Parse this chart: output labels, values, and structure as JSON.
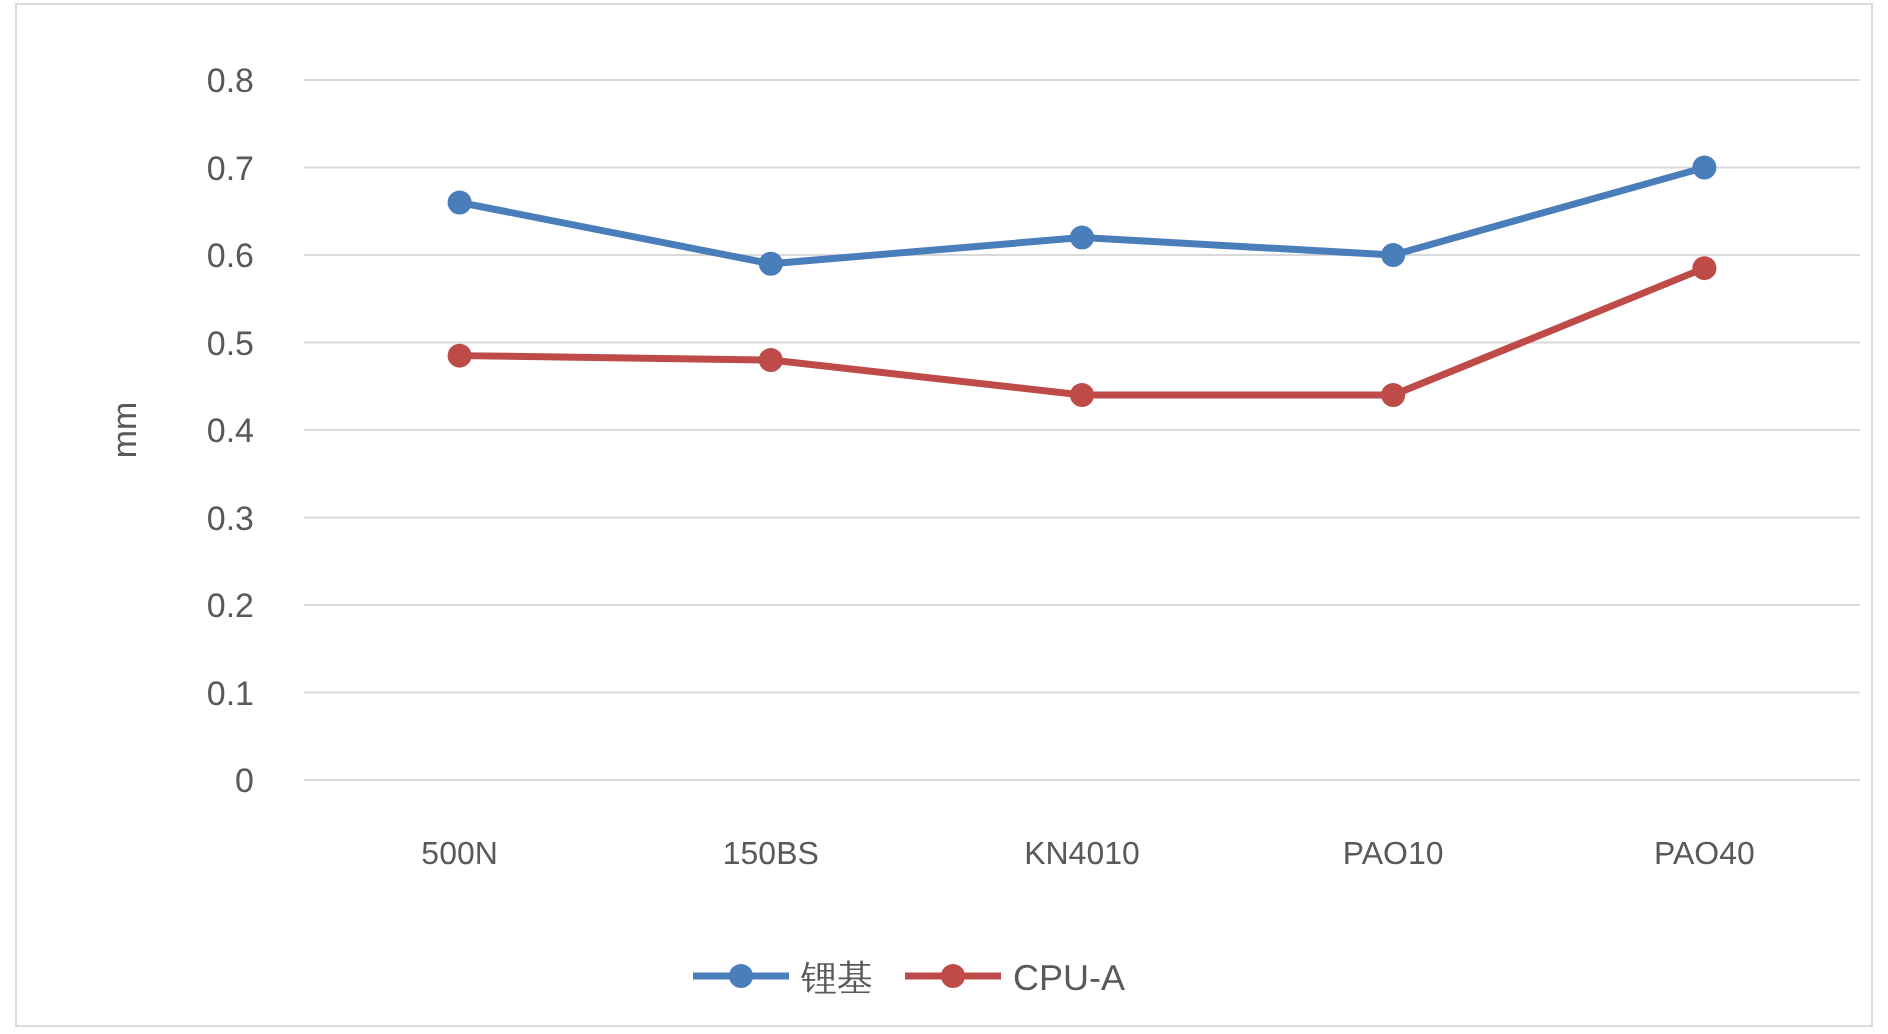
{
  "chart_data": {
    "type": "line",
    "ylabel": "mm",
    "categories": [
      "500N",
      "150BS",
      "KN4010",
      "PAO10",
      "PAO40"
    ],
    "series": [
      {
        "name": "锂基",
        "color": "#4a7ebb",
        "values": [
          0.66,
          0.59,
          0.62,
          0.6,
          0.7
        ]
      },
      {
        "name": "CPU-A",
        "color": "#be4b48",
        "values": [
          0.485,
          0.48,
          0.44,
          0.44,
          0.585
        ]
      }
    ],
    "ylim": [
      0,
      0.8
    ],
    "yticks": [
      0,
      0.1,
      0.2,
      0.3,
      0.4,
      0.5,
      0.6,
      0.7,
      0.8
    ],
    "grid": "y",
    "legend": "bottom",
    "marker": "circle",
    "line_style": "solid"
  }
}
